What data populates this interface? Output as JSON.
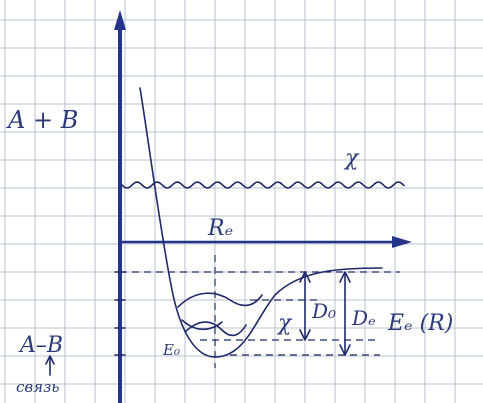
{
  "labels": {
    "reactants": "A + B",
    "wave": "χ",
    "equilibrium_distance": "Rₑ",
    "product": "A–B",
    "product_note": "связь",
    "zero_energy": "E₀",
    "level_wave": "χ",
    "d_zero": "D₀",
    "d_e": "Dₑ",
    "potential": "Eₑ (R)"
  }
}
